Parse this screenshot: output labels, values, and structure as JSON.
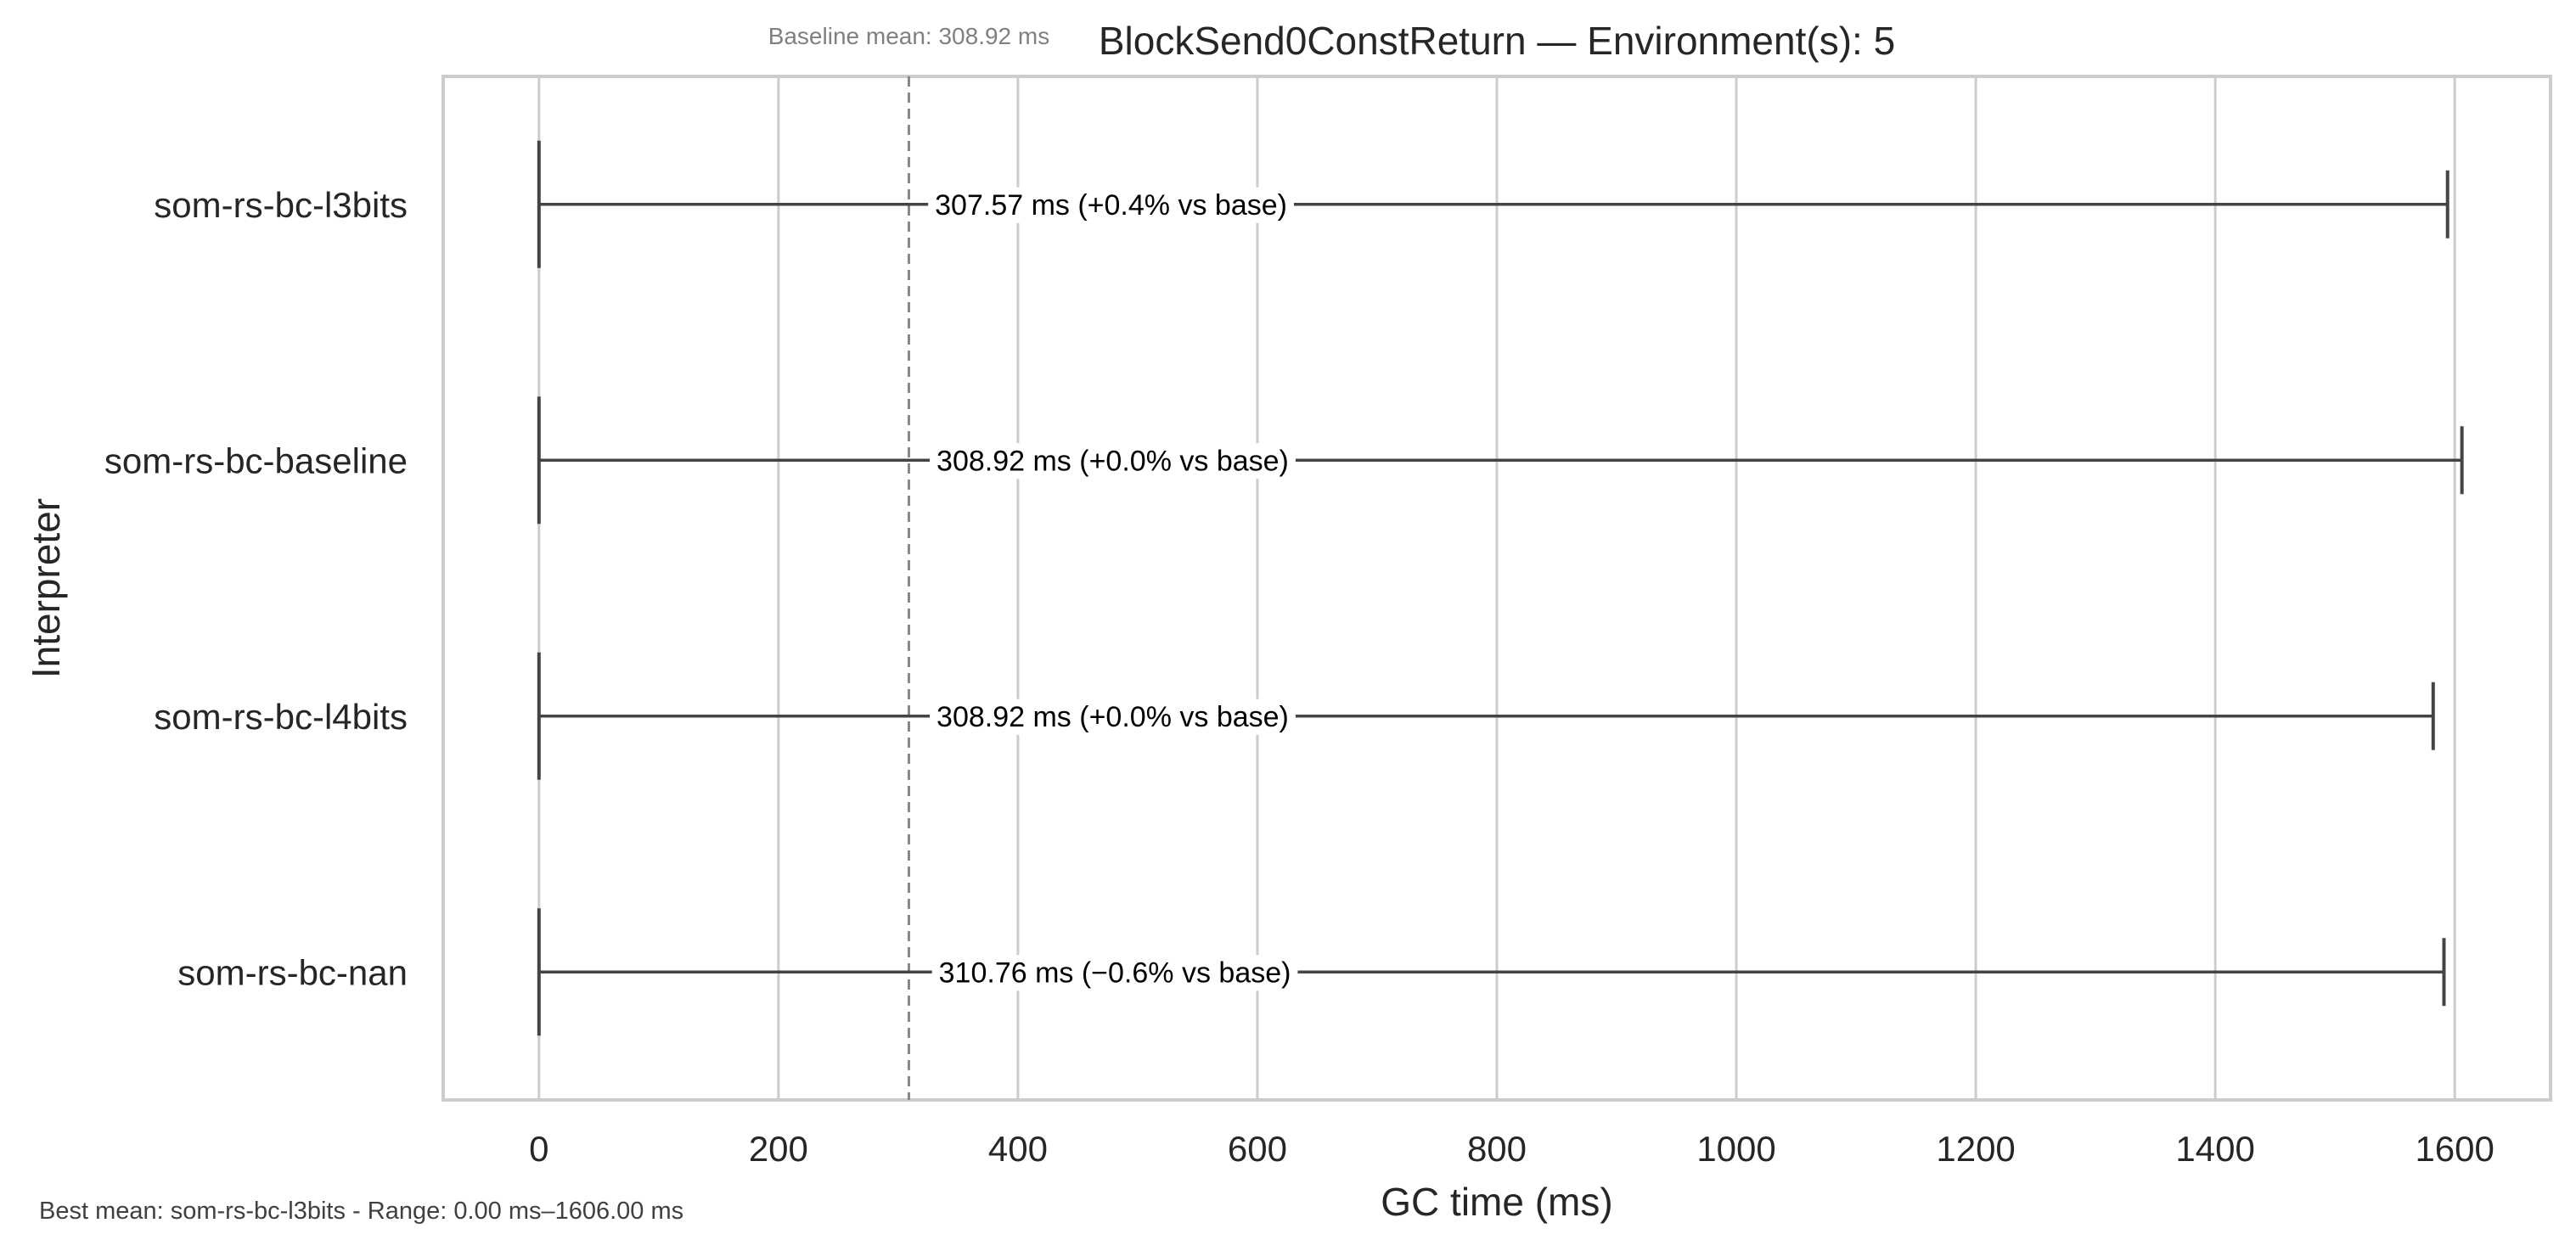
{
  "chart_data": {
    "type": "range",
    "title": "BlockSend0ConstReturn — Environment(s): 5",
    "xlabel": "GC time (ms)",
    "ylabel": "Interpreter",
    "xlim": [
      -80,
      1680
    ],
    "xticks": [
      0,
      200,
      400,
      600,
      800,
      1000,
      1200,
      1400,
      1600
    ],
    "grid": true,
    "baseline": {
      "value": 308.92,
      "label": "Baseline mean: 308.92 ms"
    },
    "categories": [
      "som-rs-bc-l3bits",
      "som-rs-bc-baseline",
      "som-rs-bc-l4bits",
      "som-rs-bc-nan"
    ],
    "series": [
      {
        "category": "som-rs-bc-l3bits",
        "min": 0,
        "max": 1594,
        "mean": 307.57,
        "annotation": "307.57 ms  (+0.4% vs base)"
      },
      {
        "category": "som-rs-bc-baseline",
        "min": 0,
        "max": 1606,
        "mean": 308.92,
        "annotation": "308.92 ms  (+0.0% vs base)"
      },
      {
        "category": "som-rs-bc-l4bits",
        "min": 0,
        "max": 1582,
        "mean": 308.92,
        "annotation": "308.92 ms  (+0.0% vs base)"
      },
      {
        "category": "som-rs-bc-nan",
        "min": 0,
        "max": 1591,
        "mean": 310.76,
        "annotation": "310.76 ms  (−0.6% vs base)"
      }
    ],
    "footnote": "Best mean: som-rs-bc-l3bits - Range: 0.00 ms–1606.00 ms",
    "colors": {
      "bar": "#444444",
      "grid": "#cccccc",
      "frame": "#cccccc",
      "baseline_line": "#888888",
      "text": "#262626"
    }
  }
}
